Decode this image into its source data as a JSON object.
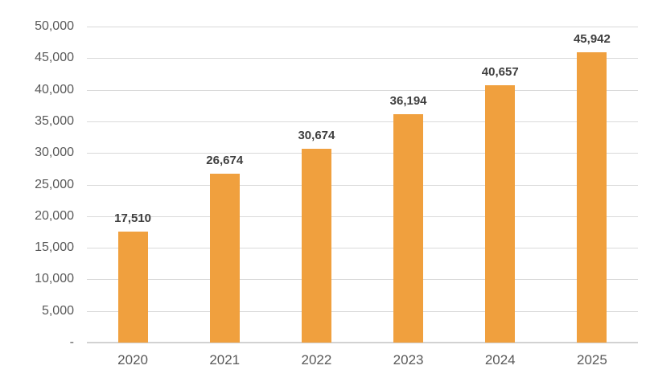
{
  "chart_data": {
    "type": "bar",
    "title": "",
    "xlabel": "",
    "ylabel": "",
    "categories": [
      "2020",
      "2021",
      "2022",
      "2023",
      "2024",
      "2025"
    ],
    "values": [
      17510,
      26674,
      30674,
      36194,
      40657,
      45942
    ],
    "value_labels": [
      "17,510",
      "26,674",
      "30,674",
      "36,194",
      "40,657",
      "45,942"
    ],
    "y_ticks": [
      0,
      5000,
      10000,
      15000,
      20000,
      25000,
      30000,
      35000,
      40000,
      45000,
      50000
    ],
    "y_tick_labels": [
      "-",
      "5,000",
      "10,000",
      "15,000",
      "20,000",
      "25,000",
      "30,000",
      "35,000",
      "40,000",
      "45,000",
      "50,000"
    ],
    "ylim": [
      0,
      50000
    ],
    "grid": "horizontal",
    "legend": "none",
    "colors": {
      "bar_fill": "#f0a03e",
      "value_label_text": "#3f3f3f",
      "axis_tick_text": "#595959",
      "gridline": "#d9d9d9",
      "axis_line": "#d2d2d2",
      "background": "#ffffff"
    }
  }
}
